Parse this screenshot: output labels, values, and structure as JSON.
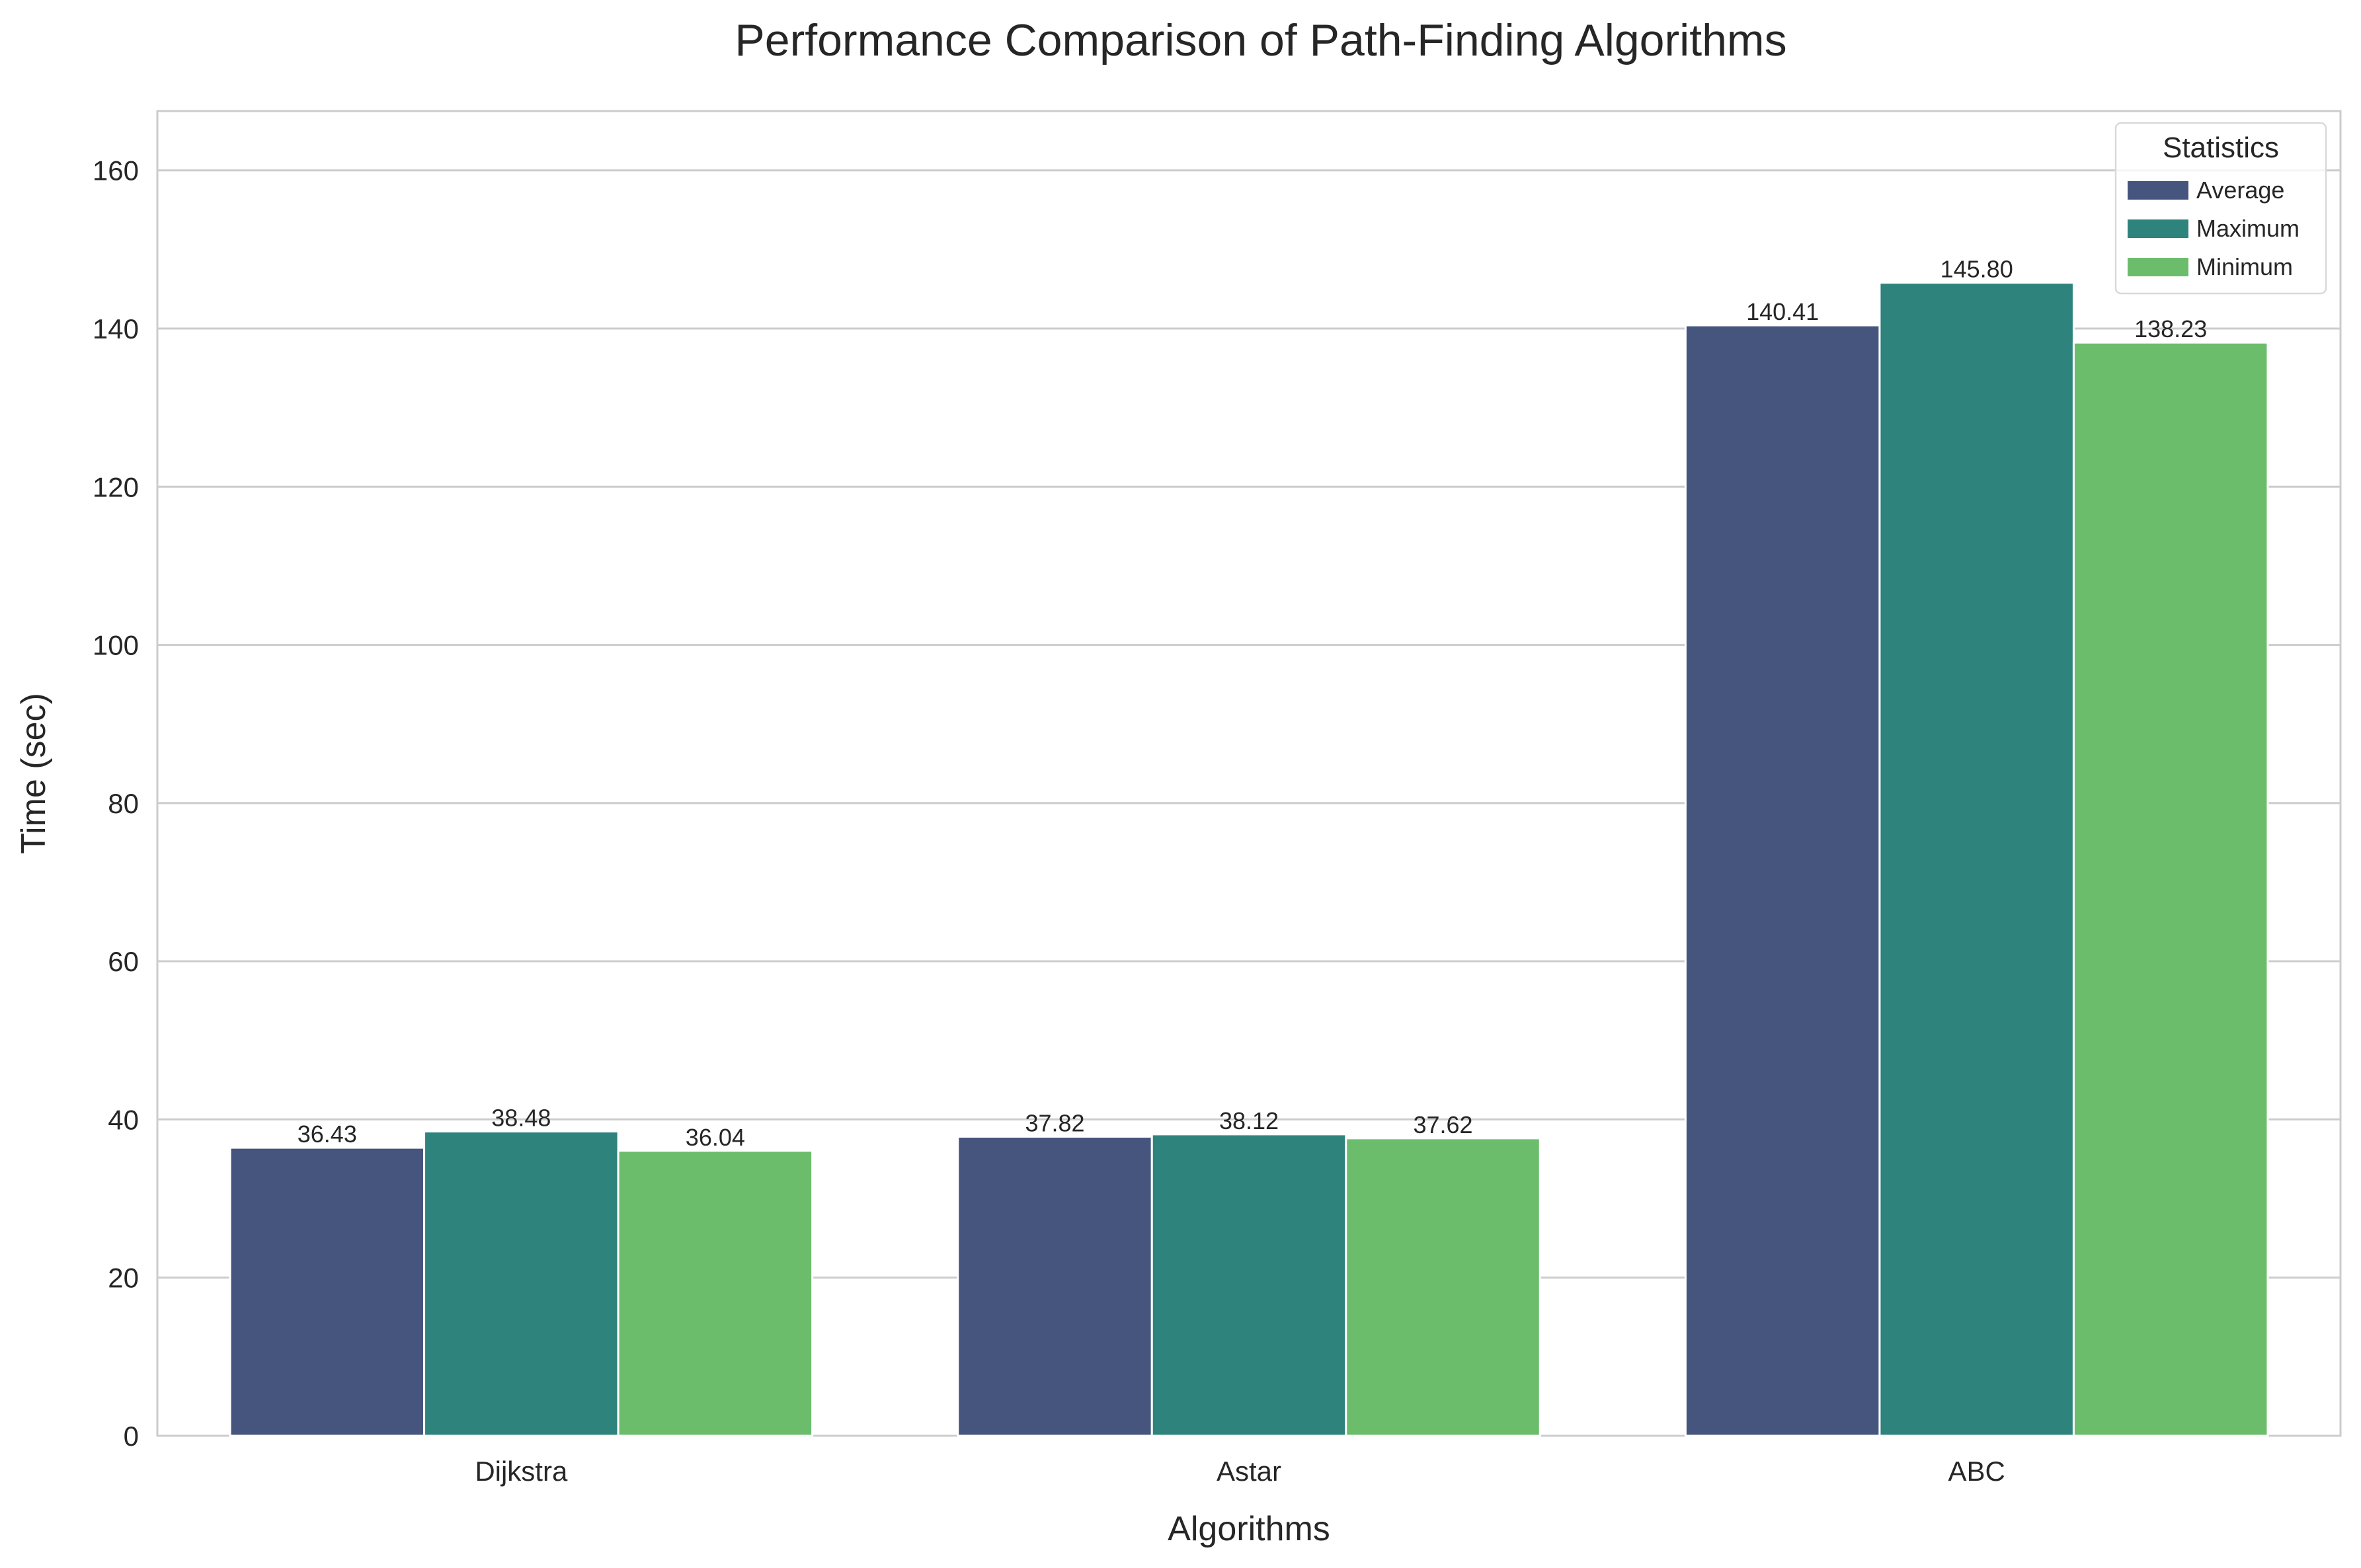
{
  "chart_data": {
    "type": "bar",
    "title": "Performance Comparison of Path-Finding Algorithms",
    "xlabel": "Algorithms",
    "ylabel": "Time (sec)",
    "ylim": [
      0,
      167.5
    ],
    "yticks": [
      0,
      20,
      40,
      60,
      80,
      100,
      120,
      140,
      160
    ],
    "grid": "horizontal",
    "categories": [
      "Dijkstra",
      "Astar",
      "ABC"
    ],
    "series": [
      {
        "name": "Average",
        "color": "#46557e",
        "values": [
          36.43,
          37.82,
          140.41
        ],
        "labels": [
          "36.43",
          "37.82",
          "140.41"
        ]
      },
      {
        "name": "Maximum",
        "color": "#2e837d",
        "values": [
          38.48,
          38.12,
          145.8
        ],
        "labels": [
          "38.48",
          "38.12",
          "145.80"
        ]
      },
      {
        "name": "Minimum",
        "color": "#6bbd6c",
        "values": [
          36.04,
          37.62,
          138.23
        ],
        "labels": [
          "36.04",
          "37.62",
          "138.23"
        ]
      }
    ],
    "legend": {
      "title": "Statistics",
      "placement": "top-right"
    }
  }
}
